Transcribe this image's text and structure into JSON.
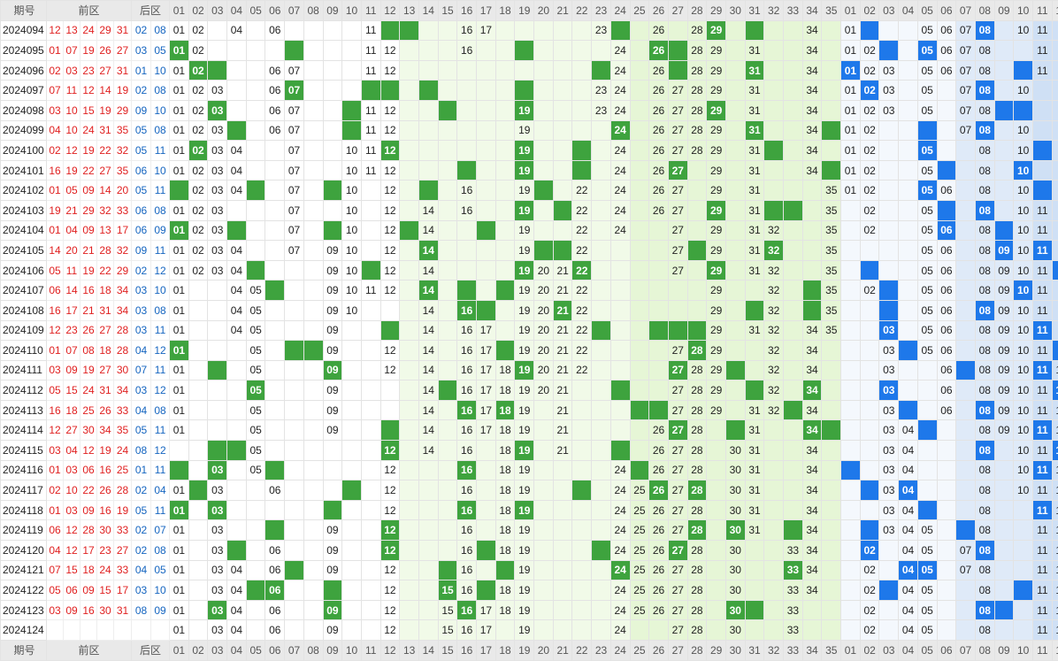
{
  "header": {
    "issue": "期号",
    "front": "前区",
    "back": "后区",
    "front_nums": [
      "01",
      "02",
      "03",
      "04",
      "05",
      "06",
      "07",
      "08",
      "09",
      "10",
      "11",
      "12",
      "13",
      "14",
      "15",
      "16",
      "17",
      "18",
      "19",
      "20",
      "21",
      "22",
      "23",
      "24",
      "25",
      "26",
      "27",
      "28",
      "29",
      "30",
      "31",
      "32",
      "33",
      "34",
      "35"
    ],
    "back_nums": [
      "01",
      "02",
      "03",
      "04",
      "05",
      "06",
      "07",
      "08",
      "09",
      "10",
      "11",
      "12"
    ]
  },
  "colors": {
    "front_hit": "#3ea33e",
    "back_hit": "#1e78ea",
    "front_text": "#e02020",
    "back_text": "#1565c0"
  },
  "rows": [
    {
      "issue": "2024094",
      "front": [
        "12",
        "13",
        "24",
        "29",
        "31"
      ],
      "back": [
        "02",
        "08"
      ],
      "f": [
        "01",
        "02",
        "04",
        "06",
        "11",
        "16",
        "17",
        "23",
        "26",
        "28",
        "29",
        "34"
      ],
      "b": [
        "01",
        "05",
        "06",
        "07",
        "08",
        "10",
        "11"
      ]
    },
    {
      "issue": "2024095",
      "front": [
        "01",
        "07",
        "19",
        "26",
        "27"
      ],
      "back": [
        "03",
        "05"
      ],
      "f": [
        "01",
        "02",
        "11",
        "12",
        "16",
        "24",
        "26",
        "28",
        "29",
        "31",
        "34"
      ],
      "b": [
        "01",
        "02",
        "05",
        "06",
        "07",
        "08",
        "11"
      ]
    },
    {
      "issue": "2024096",
      "front": [
        "02",
        "03",
        "23",
        "27",
        "31"
      ],
      "back": [
        "01",
        "10"
      ],
      "f": [
        "01",
        "02",
        "06",
        "07",
        "11",
        "12",
        "24",
        "26",
        "28",
        "29",
        "31",
        "34"
      ],
      "b": [
        "01",
        "02",
        "03",
        "05",
        "06",
        "07",
        "08",
        "11"
      ]
    },
    {
      "issue": "2024097",
      "front": [
        "07",
        "11",
        "12",
        "14",
        "19"
      ],
      "back": [
        "02",
        "08"
      ],
      "f": [
        "01",
        "02",
        "03",
        "06",
        "07",
        "23",
        "24",
        "26",
        "27",
        "28",
        "29",
        "31",
        "34"
      ],
      "b": [
        "01",
        "02",
        "03",
        "05",
        "07",
        "08",
        "10"
      ]
    },
    {
      "issue": "2024098",
      "front": [
        "03",
        "10",
        "15",
        "19",
        "29"
      ],
      "back": [
        "09",
        "10"
      ],
      "f": [
        "01",
        "02",
        "03",
        "06",
        "07",
        "11",
        "12",
        "19",
        "23",
        "24",
        "26",
        "27",
        "28",
        "29",
        "31",
        "34"
      ],
      "b": [
        "01",
        "02",
        "03",
        "05",
        "07",
        "08"
      ]
    },
    {
      "issue": "2024099",
      "front": [
        "04",
        "10",
        "24",
        "31",
        "35"
      ],
      "back": [
        "05",
        "08"
      ],
      "f": [
        "01",
        "02",
        "03",
        "06",
        "07",
        "11",
        "12",
        "19",
        "24",
        "26",
        "27",
        "28",
        "29",
        "31",
        "34"
      ],
      "b": [
        "01",
        "02",
        "07",
        "08",
        "10"
      ]
    },
    {
      "issue": "2024100",
      "front": [
        "02",
        "12",
        "19",
        "22",
        "32"
      ],
      "back": [
        "05",
        "11"
      ],
      "f": [
        "01",
        "02",
        "03",
        "04",
        "07",
        "10",
        "11",
        "12",
        "19",
        "24",
        "26",
        "27",
        "28",
        "29",
        "31",
        "34"
      ],
      "b": [
        "01",
        "02",
        "05",
        "08",
        "10"
      ]
    },
    {
      "issue": "2024101",
      "front": [
        "16",
        "19",
        "22",
        "27",
        "35"
      ],
      "back": [
        "06",
        "10"
      ],
      "f": [
        "01",
        "02",
        "03",
        "04",
        "07",
        "10",
        "11",
        "12",
        "19",
        "24",
        "26",
        "27",
        "29",
        "31",
        "34"
      ],
      "b": [
        "01",
        "02",
        "05",
        "08",
        "10"
      ]
    },
    {
      "issue": "2024102",
      "front": [
        "01",
        "05",
        "09",
        "14",
        "20"
      ],
      "back": [
        "05",
        "11"
      ],
      "f": [
        "02",
        "03",
        "04",
        "07",
        "10",
        "12",
        "16",
        "19",
        "22",
        "24",
        "26",
        "27",
        "29",
        "31",
        "35"
      ],
      "b": [
        "01",
        "02",
        "05",
        "06",
        "08",
        "10"
      ]
    },
    {
      "issue": "2024103",
      "front": [
        "19",
        "21",
        "29",
        "32",
        "33"
      ],
      "back": [
        "06",
        "08"
      ],
      "f": [
        "01",
        "02",
        "03",
        "07",
        "10",
        "12",
        "14",
        "16",
        "19",
        "22",
        "24",
        "26",
        "27",
        "29",
        "31",
        "35"
      ],
      "b": [
        "02",
        "05",
        "08",
        "10",
        "11"
      ]
    },
    {
      "issue": "2024104",
      "front": [
        "01",
        "04",
        "09",
        "13",
        "17"
      ],
      "back": [
        "06",
        "09"
      ],
      "f": [
        "01",
        "02",
        "03",
        "07",
        "10",
        "12",
        "14",
        "19",
        "22",
        "24",
        "27",
        "29",
        "31",
        "32",
        "35"
      ],
      "b": [
        "02",
        "05",
        "06",
        "08",
        "10",
        "11"
      ]
    },
    {
      "issue": "2024105",
      "front": [
        "14",
        "20",
        "21",
        "28",
        "32"
      ],
      "back": [
        "09",
        "11"
      ],
      "f": [
        "01",
        "02",
        "03",
        "04",
        "07",
        "09",
        "10",
        "12",
        "14",
        "19",
        "22",
        "27",
        "29",
        "31",
        "32",
        "35"
      ],
      "b": [
        "05",
        "06",
        "08",
        "09",
        "10",
        "11"
      ]
    },
    {
      "issue": "2024106",
      "front": [
        "05",
        "11",
        "19",
        "22",
        "29"
      ],
      "back": [
        "02",
        "12"
      ],
      "f": [
        "01",
        "02",
        "03",
        "04",
        "09",
        "10",
        "12",
        "14",
        "19",
        "20",
        "21",
        "22",
        "27",
        "29",
        "31",
        "32",
        "35"
      ],
      "b": [
        "05",
        "06",
        "08",
        "09",
        "10",
        "11"
      ]
    },
    {
      "issue": "2024107",
      "front": [
        "06",
        "14",
        "16",
        "18",
        "34"
      ],
      "back": [
        "03",
        "10"
      ],
      "f": [
        "01",
        "04",
        "05",
        "09",
        "10",
        "11",
        "12",
        "14",
        "19",
        "20",
        "21",
        "22",
        "29",
        "32",
        "35"
      ],
      "b": [
        "02",
        "05",
        "06",
        "08",
        "09",
        "10",
        "11"
      ]
    },
    {
      "issue": "2024108",
      "front": [
        "16",
        "17",
        "21",
        "31",
        "34"
      ],
      "back": [
        "03",
        "08"
      ],
      "f": [
        "01",
        "04",
        "05",
        "09",
        "10",
        "14",
        "16",
        "19",
        "20",
        "21",
        "22",
        "29",
        "32",
        "35"
      ],
      "b": [
        "05",
        "06",
        "08",
        "09",
        "10",
        "11"
      ]
    },
    {
      "issue": "2024109",
      "front": [
        "12",
        "23",
        "26",
        "27",
        "28"
      ],
      "back": [
        "03",
        "11"
      ],
      "f": [
        "01",
        "04",
        "05",
        "09",
        "14",
        "16",
        "17",
        "19",
        "20",
        "21",
        "22",
        "29",
        "31",
        "32",
        "34",
        "35"
      ],
      "b": [
        "03",
        "05",
        "06",
        "08",
        "09",
        "10",
        "11"
      ]
    },
    {
      "issue": "2024110",
      "front": [
        "01",
        "07",
        "08",
        "18",
        "28"
      ],
      "back": [
        "04",
        "12"
      ],
      "f": [
        "01",
        "05",
        "09",
        "12",
        "14",
        "16",
        "17",
        "19",
        "20",
        "21",
        "22",
        "27",
        "28",
        "29",
        "32",
        "34"
      ],
      "b": [
        "03",
        "05",
        "06",
        "08",
        "09",
        "10",
        "11"
      ]
    },
    {
      "issue": "2024111",
      "front": [
        "03",
        "09",
        "19",
        "27",
        "30"
      ],
      "back": [
        "07",
        "11"
      ],
      "f": [
        "01",
        "05",
        "09",
        "12",
        "14",
        "16",
        "17",
        "18",
        "19",
        "20",
        "21",
        "22",
        "27",
        "28",
        "29",
        "32",
        "34"
      ],
      "b": [
        "03",
        "06",
        "08",
        "09",
        "10",
        "11",
        "12"
      ]
    },
    {
      "issue": "2024112",
      "front": [
        "05",
        "15",
        "24",
        "31",
        "34"
      ],
      "back": [
        "03",
        "12"
      ],
      "f": [
        "01",
        "05",
        "09",
        "14",
        "16",
        "17",
        "18",
        "19",
        "20",
        "21",
        "27",
        "28",
        "29",
        "32",
        "34"
      ],
      "b": [
        "03",
        "06",
        "08",
        "09",
        "10",
        "11",
        "12"
      ]
    },
    {
      "issue": "2024113",
      "front": [
        "16",
        "18",
        "25",
        "26",
        "33"
      ],
      "back": [
        "04",
        "08"
      ],
      "f": [
        "01",
        "05",
        "09",
        "14",
        "16",
        "17",
        "18",
        "19",
        "21",
        "27",
        "28",
        "29",
        "31",
        "32",
        "34"
      ],
      "b": [
        "03",
        "06",
        "08",
        "09",
        "10",
        "11",
        "12"
      ]
    },
    {
      "issue": "2024114",
      "front": [
        "12",
        "27",
        "30",
        "34",
        "35"
      ],
      "back": [
        "05",
        "11"
      ],
      "f": [
        "01",
        "05",
        "09",
        "14",
        "16",
        "17",
        "18",
        "19",
        "21",
        "26",
        "27",
        "28",
        "31",
        "34"
      ],
      "b": [
        "03",
        "04",
        "08",
        "09",
        "10",
        "11",
        "12"
      ]
    },
    {
      "issue": "2024115",
      "front": [
        "03",
        "04",
        "12",
        "19",
        "24"
      ],
      "back": [
        "08",
        "12"
      ],
      "f": [
        "05",
        "12",
        "14",
        "16",
        "18",
        "19",
        "21",
        "26",
        "27",
        "28",
        "30",
        "31",
        "34"
      ],
      "b": [
        "03",
        "04",
        "08",
        "10",
        "11",
        "12"
      ]
    },
    {
      "issue": "2024116",
      "front": [
        "01",
        "03",
        "06",
        "16",
        "25"
      ],
      "back": [
        "01",
        "11"
      ],
      "f": [
        "03",
        "05",
        "12",
        "16",
        "18",
        "19",
        "24",
        "26",
        "27",
        "28",
        "30",
        "31",
        "34"
      ],
      "b": [
        "03",
        "04",
        "08",
        "10",
        "11",
        "12"
      ]
    },
    {
      "issue": "2024117",
      "front": [
        "02",
        "10",
        "22",
        "26",
        "28"
      ],
      "back": [
        "02",
        "04"
      ],
      "f": [
        "01",
        "03",
        "06",
        "12",
        "16",
        "18",
        "19",
        "24",
        "25",
        "26",
        "27",
        "28",
        "30",
        "31",
        "34"
      ],
      "b": [
        "03",
        "04",
        "08",
        "10",
        "11",
        "12"
      ]
    },
    {
      "issue": "2024118",
      "front": [
        "01",
        "03",
        "09",
        "16",
        "19"
      ],
      "back": [
        "05",
        "11"
      ],
      "f": [
        "01",
        "03",
        "12",
        "16",
        "18",
        "19",
        "24",
        "25",
        "26",
        "27",
        "28",
        "30",
        "31",
        "34"
      ],
      "b": [
        "03",
        "04",
        "08",
        "11",
        "12"
      ]
    },
    {
      "issue": "2024119",
      "front": [
        "06",
        "12",
        "28",
        "30",
        "33"
      ],
      "back": [
        "02",
        "07"
      ],
      "f": [
        "01",
        "03",
        "09",
        "12",
        "16",
        "18",
        "19",
        "24",
        "25",
        "26",
        "27",
        "28",
        "30",
        "31",
        "34"
      ],
      "b": [
        "03",
        "04",
        "05",
        "08",
        "11",
        "12"
      ]
    },
    {
      "issue": "2024120",
      "front": [
        "04",
        "12",
        "17",
        "23",
        "27"
      ],
      "back": [
        "02",
        "08"
      ],
      "f": [
        "01",
        "03",
        "06",
        "09",
        "12",
        "16",
        "18",
        "19",
        "24",
        "25",
        "26",
        "27",
        "28",
        "30",
        "33",
        "34"
      ],
      "b": [
        "02",
        "04",
        "05",
        "07",
        "08",
        "11",
        "12"
      ]
    },
    {
      "issue": "2024121",
      "front": [
        "07",
        "15",
        "18",
        "24",
        "33"
      ],
      "back": [
        "04",
        "05"
      ],
      "f": [
        "01",
        "03",
        "04",
        "06",
        "09",
        "12",
        "16",
        "19",
        "24",
        "25",
        "26",
        "27",
        "28",
        "30",
        "33",
        "34"
      ],
      "b": [
        "02",
        "04",
        "05",
        "07",
        "08",
        "11",
        "12"
      ]
    },
    {
      "issue": "2024122",
      "front": [
        "05",
        "06",
        "09",
        "15",
        "17"
      ],
      "back": [
        "03",
        "10"
      ],
      "f": [
        "01",
        "03",
        "04",
        "06",
        "12",
        "15",
        "16",
        "18",
        "19",
        "24",
        "25",
        "26",
        "27",
        "28",
        "30",
        "33",
        "34"
      ],
      "b": [
        "02",
        "04",
        "05",
        "08",
        "11",
        "12"
      ]
    },
    {
      "issue": "2024123",
      "front": [
        "03",
        "09",
        "16",
        "30",
        "31"
      ],
      "back": [
        "08",
        "09"
      ],
      "f": [
        "01",
        "03",
        "04",
        "06",
        "09",
        "12",
        "15",
        "16",
        "17",
        "18",
        "19",
        "24",
        "25",
        "26",
        "27",
        "28",
        "30",
        "33"
      ],
      "b": [
        "02",
        "04",
        "05",
        "08",
        "11",
        "12"
      ]
    },
    {
      "issue": "2024124",
      "front": [],
      "back": [],
      "f": [
        "01",
        "03",
        "04",
        "06",
        "09",
        "12",
        "15",
        "16",
        "17",
        "19",
        "24",
        "27",
        "28",
        "30",
        "33"
      ],
      "b": [
        "02",
        "04",
        "05",
        "08",
        "11",
        "12"
      ]
    }
  ]
}
